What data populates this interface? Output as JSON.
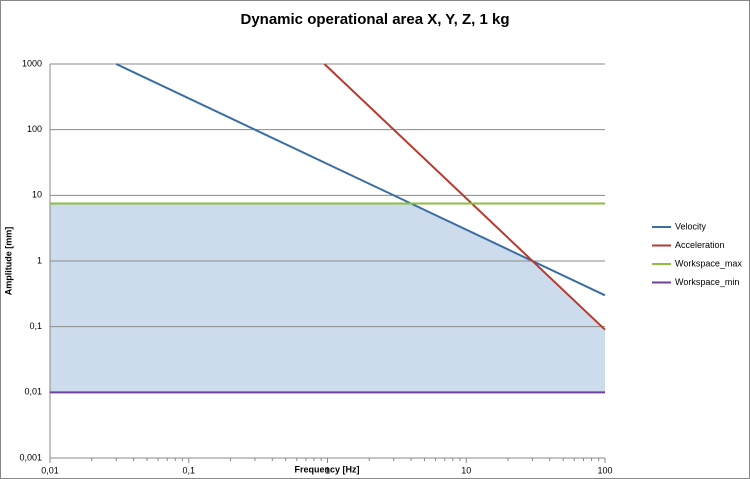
{
  "chart_data": {
    "type": "line",
    "title": "Dynamic operational area X, Y, Z, 1 kg",
    "x_label": "Frequency [Hz]",
    "y_label": "Amplitude [mm]",
    "log_x": true,
    "log_y": true,
    "grid": true,
    "legend": "right",
    "xlim": [
      0.01,
      100
    ],
    "ylim": [
      0.001,
      1000
    ],
    "xticks": [
      {
        "value": 0.01,
        "label": "0,01"
      },
      {
        "value": 0.1,
        "label": "0,1"
      },
      1,
      10,
      100
    ],
    "yticks": [
      {
        "value": 0.001,
        "label": "0,001"
      },
      {
        "value": 0.01,
        "label": "0,01"
      },
      {
        "value": 0.1,
        "label": "0,1"
      },
      1,
      10,
      100,
      1000
    ],
    "area_color": "#cddcec",
    "series": [
      {
        "name": "Velocity",
        "color": "#3a6ea5",
        "x": [
          0.03,
          100
        ],
        "values": [
          1000,
          0.3
        ]
      },
      {
        "name": "Acceleration",
        "color": "#b83a2f",
        "x": [
          0.95,
          100
        ],
        "values": [
          1000,
          0.09
        ]
      },
      {
        "name": "Workspace_max",
        "color": "#8cbf3f",
        "x": [
          0.01,
          100
        ],
        "values": [
          7.5,
          7.5
        ]
      },
      {
        "name": "Workspace_min",
        "color": "#7040a0",
        "x": [
          0.01,
          100
        ],
        "values": [
          0.01,
          0.01
        ]
      }
    ]
  }
}
